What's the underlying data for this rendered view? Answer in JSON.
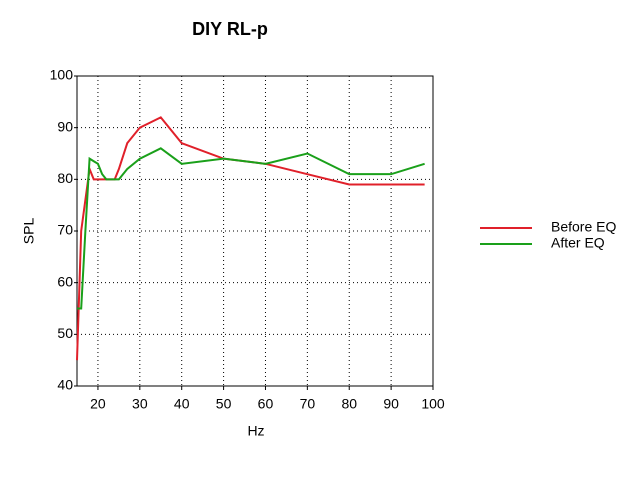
{
  "chart_data": {
    "type": "line",
    "title": "DIY RL-p",
    "x_label": "Hz",
    "y_label": "SPL",
    "xlim": [
      15,
      100
    ],
    "xticks": [
      20,
      30,
      40,
      50,
      60,
      70,
      80,
      90,
      100
    ],
    "ylim": [
      40,
      100
    ],
    "yticks": [
      40,
      50,
      60,
      70,
      80,
      90,
      100
    ],
    "grid": true,
    "legend": "right",
    "series": [
      {
        "name": "Before EQ",
        "color": "#e0202a",
        "x": [
          15,
          16,
          18,
          19,
          20,
          22,
          24,
          25,
          27,
          30,
          35,
          40,
          50,
          60,
          70,
          80,
          90,
          98
        ],
        "values": [
          45,
          70,
          82,
          80,
          80,
          80,
          80,
          82,
          87,
          90,
          92,
          87,
          84,
          83,
          81,
          79,
          79,
          79
        ]
      },
      {
        "name": "After EQ",
        "color": "#1aa01a",
        "x": [
          15,
          16,
          17,
          18,
          19,
          20,
          21,
          22,
          25,
          27,
          30,
          35,
          40,
          50,
          60,
          70,
          80,
          90,
          98
        ],
        "values": [
          55,
          55,
          70,
          84,
          83.5,
          83,
          81,
          80,
          80,
          82,
          84,
          86,
          83,
          84,
          83,
          85,
          81,
          81,
          83
        ]
      }
    ]
  }
}
